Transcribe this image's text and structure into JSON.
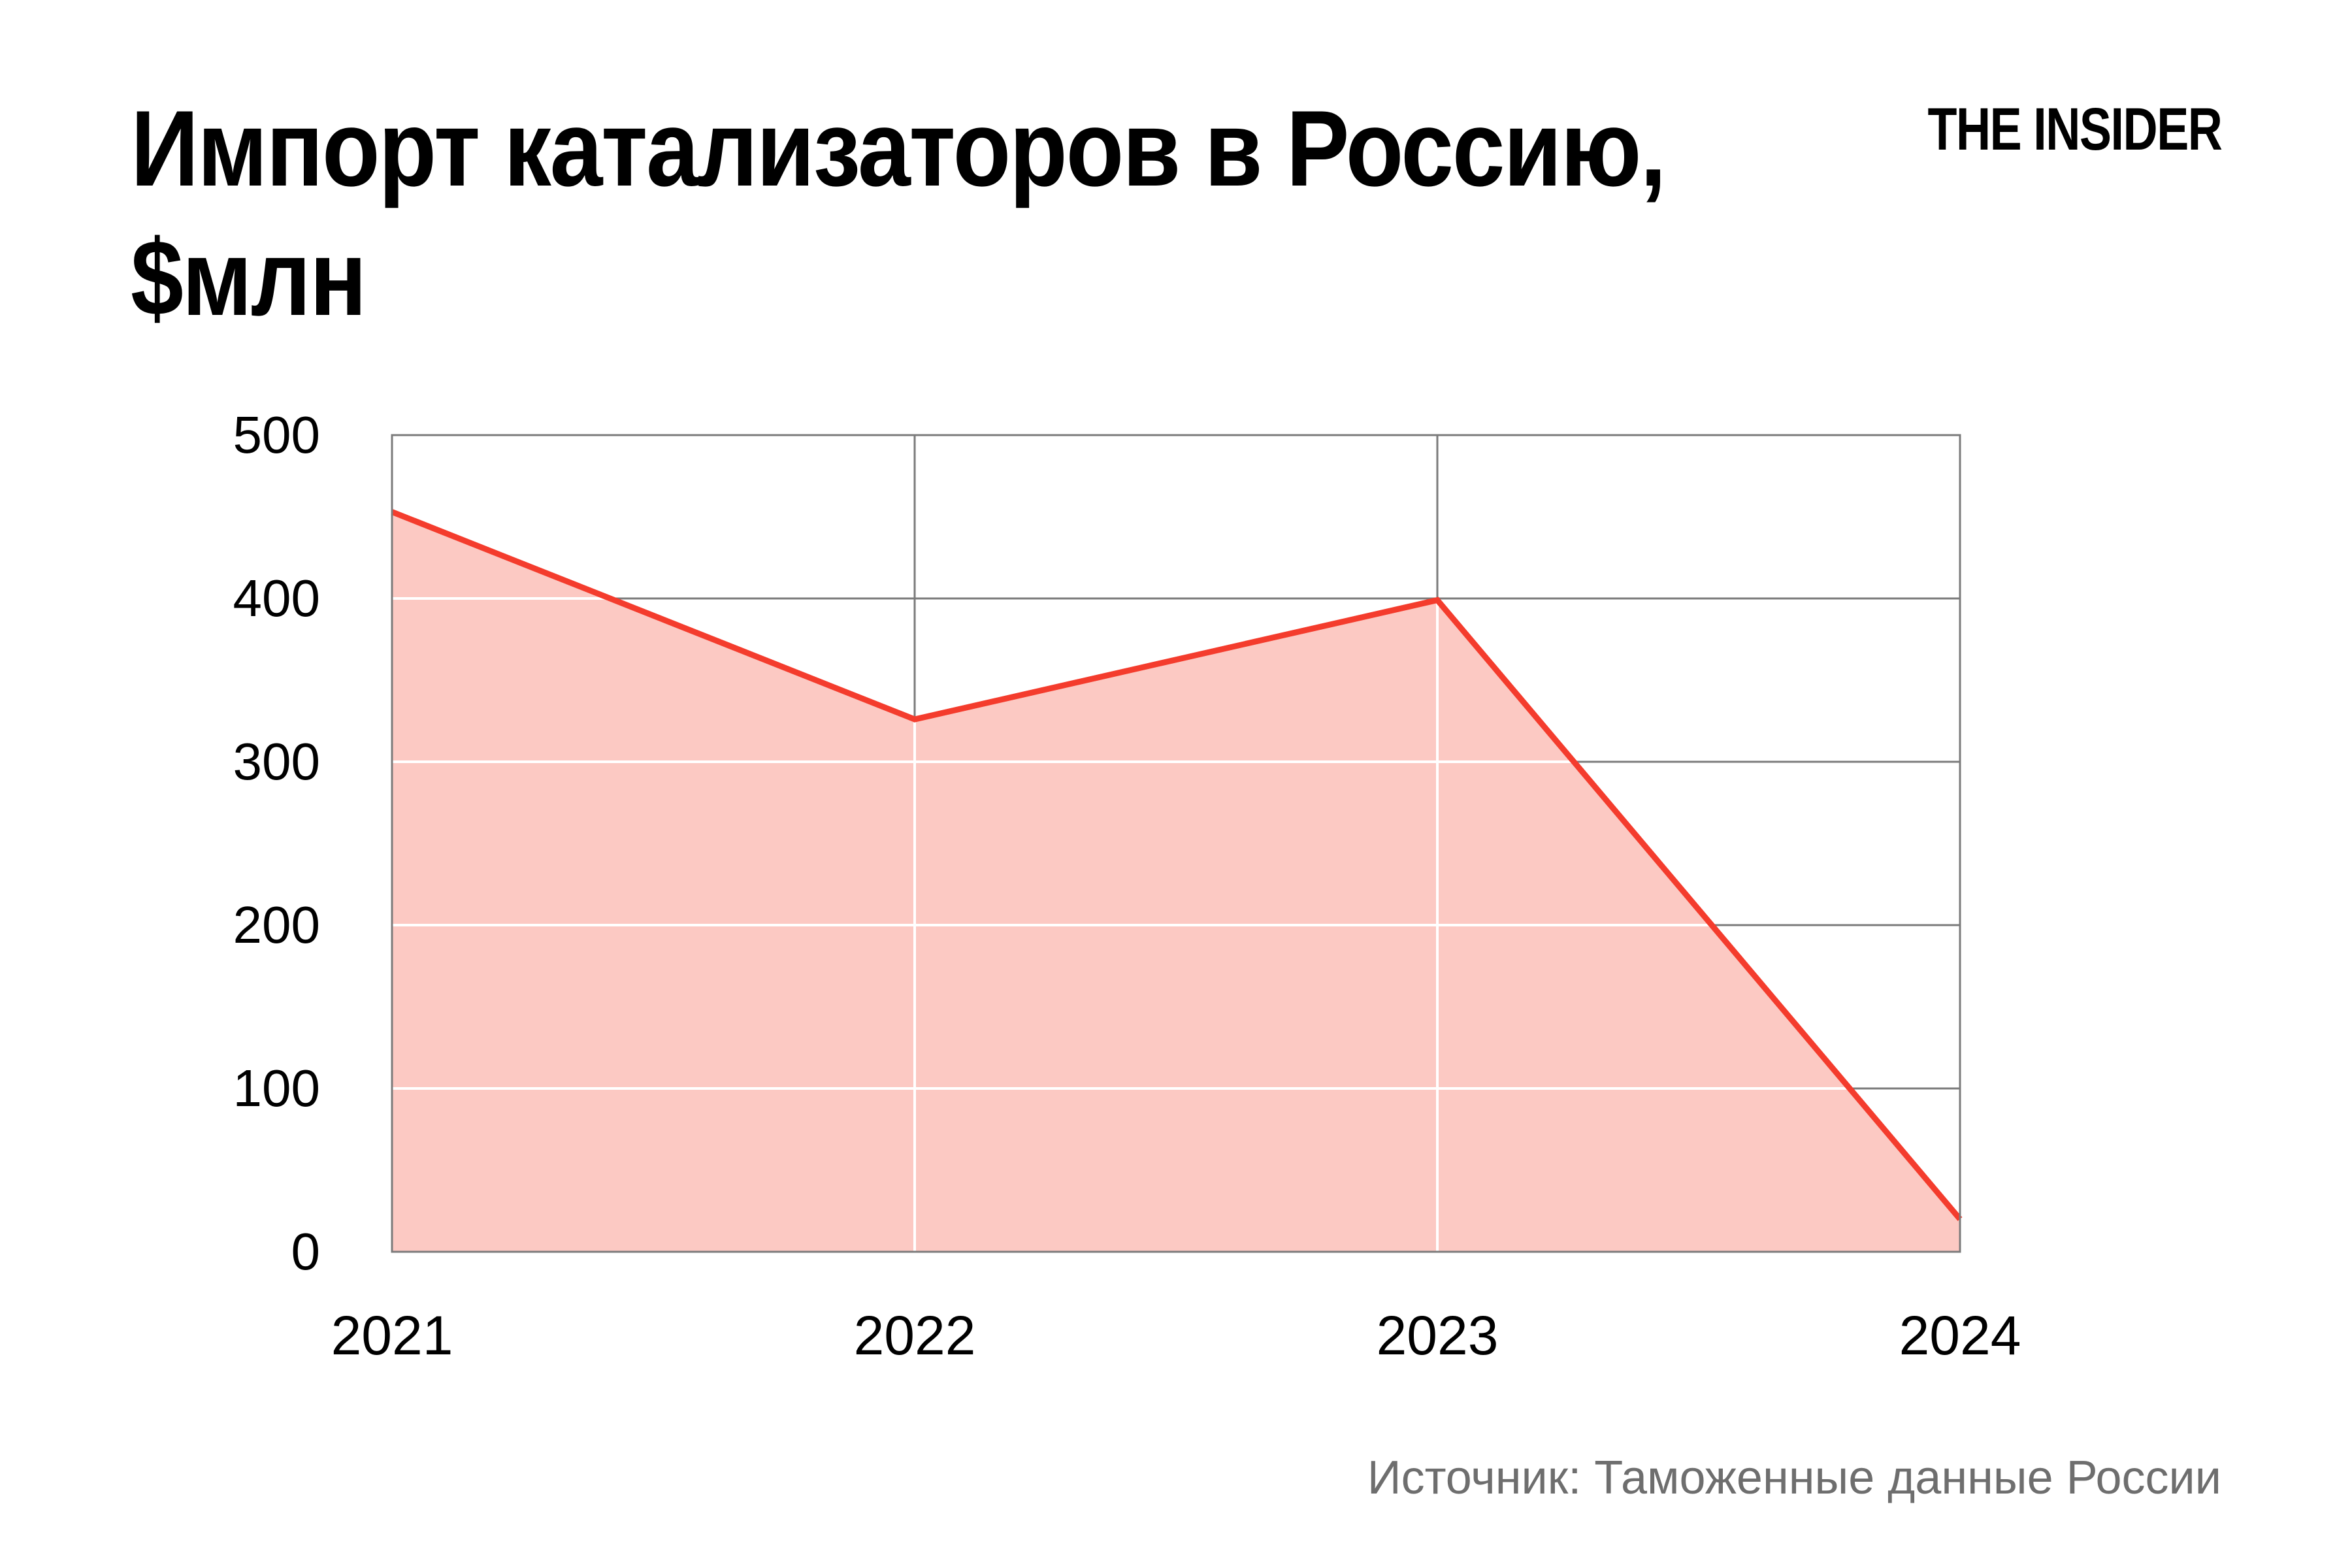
{
  "title": {
    "line1": "Импорт катализаторов в Россию,",
    "line2": "$млн"
  },
  "logo": "THE INSIDER",
  "source": "Источник: Таможенные данные России",
  "chart_data": {
    "type": "area",
    "x": [
      "2021",
      "2022",
      "2023",
      "2024"
    ],
    "values": [
      453,
      326,
      399,
      20
    ],
    "title": "Импорт катализаторов в Россию, $млн",
    "xlabel": "",
    "ylabel": "",
    "ylim": [
      0,
      500
    ],
    "yticks": [
      0,
      100,
      200,
      300,
      400,
      500
    ],
    "grid": true,
    "legend": "none",
    "colors": {
      "line": "#f43c2d",
      "fill": "#fcc9c3",
      "grid": "#7b7b7b",
      "grid_on_fill": "#ffffff",
      "border": "#7b7b7b",
      "text": "#000000",
      "source_text": "#6e6e6e"
    }
  }
}
